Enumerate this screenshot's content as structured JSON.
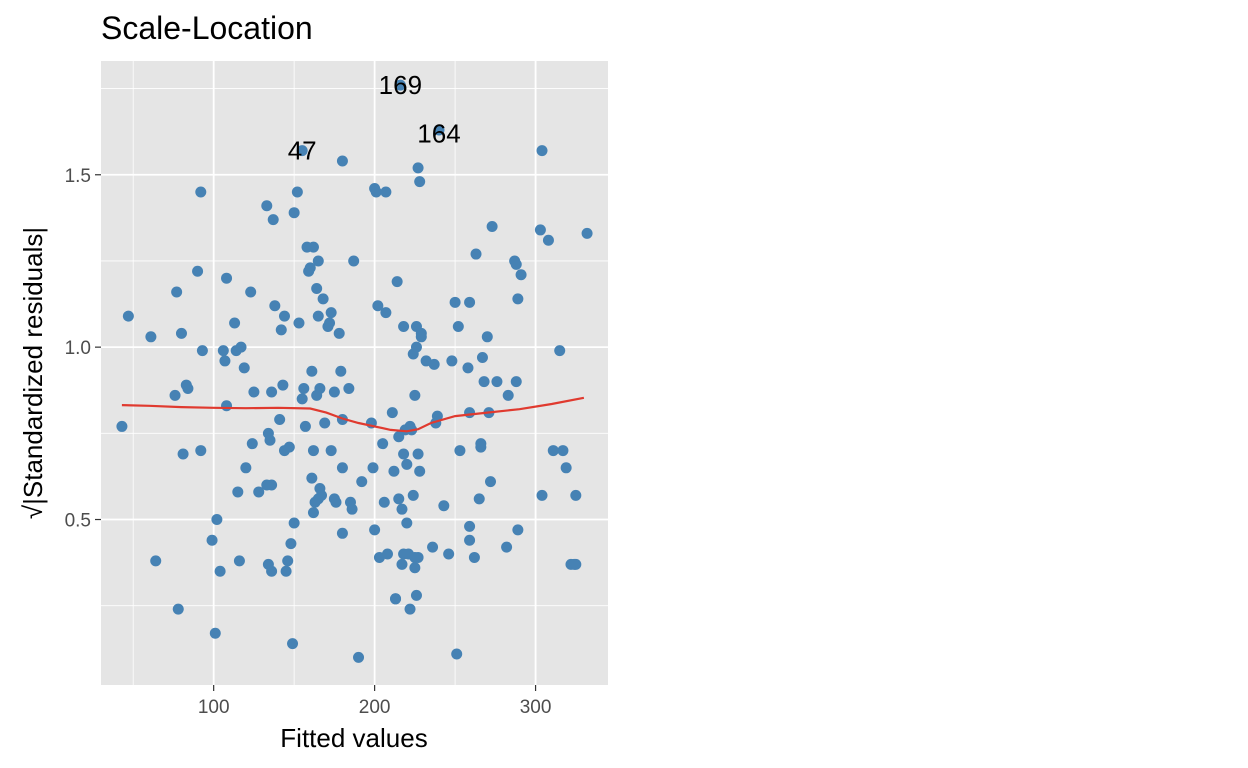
{
  "colors": {
    "panel": "#e5e5e5",
    "grid": "#ffffff",
    "point": "#4682b4",
    "smooth": "#e03a2f",
    "tick_text": "#4d4d4d"
  },
  "chart_data": {
    "type": "scatter",
    "title": "Scale-Location",
    "xlabel": "Fitted values",
    "ylabel": "√|Standardized residuals|",
    "xlim": [
      30,
      345
    ],
    "ylim": [
      0.02,
      1.83
    ],
    "x_ticks": [
      100,
      200,
      300
    ],
    "x_tick_labels": [
      "100",
      "200",
      "300"
    ],
    "y_ticks": [
      0.5,
      1.0,
      1.5
    ],
    "y_tick_labels": [
      "0.5",
      "1.0",
      "1.5"
    ],
    "grid": true,
    "legend": "none",
    "points": [
      [
        43,
        0.77
      ],
      [
        47,
        1.09
      ],
      [
        61,
        1.03
      ],
      [
        64,
        0.38
      ],
      [
        76,
        0.86
      ],
      [
        77,
        1.16
      ],
      [
        78,
        0.24
      ],
      [
        80,
        1.04
      ],
      [
        81,
        0.69
      ],
      [
        83,
        0.89
      ],
      [
        84,
        0.88
      ],
      [
        90,
        1.22
      ],
      [
        92,
        1.45
      ],
      [
        92,
        0.7
      ],
      [
        93,
        0.99
      ],
      [
        99,
        0.44
      ],
      [
        101,
        0.17
      ],
      [
        102,
        0.5
      ],
      [
        104,
        0.35
      ],
      [
        106,
        0.99
      ],
      [
        107,
        0.96
      ],
      [
        108,
        0.83
      ],
      [
        108,
        1.2
      ],
      [
        113,
        1.07
      ],
      [
        114,
        0.99
      ],
      [
        115,
        0.58
      ],
      [
        116,
        0.38
      ],
      [
        117,
        1.0
      ],
      [
        119,
        0.94
      ],
      [
        120,
        0.65
      ],
      [
        123,
        1.16
      ],
      [
        124,
        0.72
      ],
      [
        125,
        0.87
      ],
      [
        128,
        0.58
      ],
      [
        133,
        1.41
      ],
      [
        133,
        0.6
      ],
      [
        134,
        0.75
      ],
      [
        134,
        0.37
      ],
      [
        135,
        0.73
      ],
      [
        136,
        0.87
      ],
      [
        136,
        0.6
      ],
      [
        136,
        0.35
      ],
      [
        137,
        1.37
      ],
      [
        138,
        1.12
      ],
      [
        141,
        0.79
      ],
      [
        142,
        1.05
      ],
      [
        143,
        0.89
      ],
      [
        144,
        1.09
      ],
      [
        144,
        0.7
      ],
      [
        145,
        0.35
      ],
      [
        146,
        0.38
      ],
      [
        147,
        0.71
      ],
      [
        148,
        0.43
      ],
      [
        149,
        0.14
      ],
      [
        150,
        1.39
      ],
      [
        150,
        0.49
      ],
      [
        152,
        1.45
      ],
      [
        153,
        1.07
      ],
      [
        155,
        1.57
      ],
      [
        155,
        0.85
      ],
      [
        156,
        0.88
      ],
      [
        157,
        0.77
      ],
      [
        158,
        1.29
      ],
      [
        159,
        1.22
      ],
      [
        160,
        1.23
      ],
      [
        161,
        0.93
      ],
      [
        161,
        0.62
      ],
      [
        162,
        1.29
      ],
      [
        162,
        0.7
      ],
      [
        162,
        0.52
      ],
      [
        163,
        0.55
      ],
      [
        164,
        1.17
      ],
      [
        164,
        0.86
      ],
      [
        165,
        1.25
      ],
      [
        165,
        1.09
      ],
      [
        165,
        0.56
      ],
      [
        166,
        0.88
      ],
      [
        166,
        0.59
      ],
      [
        167,
        0.57
      ],
      [
        168,
        1.14
      ],
      [
        169,
        0.78
      ],
      [
        171,
        1.06
      ],
      [
        172,
        1.07
      ],
      [
        173,
        1.1
      ],
      [
        173,
        0.7
      ],
      [
        175,
        0.87
      ],
      [
        175,
        0.56
      ],
      [
        176,
        0.55
      ],
      [
        178,
        1.04
      ],
      [
        179,
        0.93
      ],
      [
        180,
        1.54
      ],
      [
        180,
        0.79
      ],
      [
        180,
        0.65
      ],
      [
        180,
        0.46
      ],
      [
        184,
        0.88
      ],
      [
        185,
        0.55
      ],
      [
        186,
        0.53
      ],
      [
        187,
        1.25
      ],
      [
        190,
        0.1
      ],
      [
        192,
        0.61
      ],
      [
        198,
        0.78
      ],
      [
        199,
        0.65
      ],
      [
        200,
        1.46
      ],
      [
        200,
        0.47
      ],
      [
        201,
        1.45
      ],
      [
        202,
        1.12
      ],
      [
        203,
        0.39
      ],
      [
        205,
        0.72
      ],
      [
        206,
        0.55
      ],
      [
        207,
        1.45
      ],
      [
        207,
        1.1
      ],
      [
        208,
        0.4
      ],
      [
        211,
        0.81
      ],
      [
        212,
        0.64
      ],
      [
        213,
        0.27
      ],
      [
        213,
        0.27
      ],
      [
        214,
        1.19
      ],
      [
        215,
        0.56
      ],
      [
        215,
        0.74
      ],
      [
        216,
        1.76
      ],
      [
        217,
        0.37
      ],
      [
        217,
        0.53
      ],
      [
        218,
        1.06
      ],
      [
        218,
        0.69
      ],
      [
        218,
        0.4
      ],
      [
        219,
        0.76
      ],
      [
        220,
        0.66
      ],
      [
        220,
        0.49
      ],
      [
        221,
        0.4
      ],
      [
        222,
        0.77
      ],
      [
        222,
        0.24
      ],
      [
        223,
        0.76
      ],
      [
        224,
        0.57
      ],
      [
        224,
        0.98
      ],
      [
        225,
        0.39
      ],
      [
        225,
        0.36
      ],
      [
        225,
        0.86
      ],
      [
        226,
        0.28
      ],
      [
        226,
        1.0
      ],
      [
        226,
        1.06
      ],
      [
        227,
        0.39
      ],
      [
        227,
        0.69
      ],
      [
        227,
        1.52
      ],
      [
        228,
        0.64
      ],
      [
        228,
        1.48
      ],
      [
        229,
        1.04
      ],
      [
        229,
        1.03
      ],
      [
        232,
        0.96
      ],
      [
        236,
        0.42
      ],
      [
        237,
        0.95
      ],
      [
        238,
        0.78
      ],
      [
        239,
        0.8
      ],
      [
        240,
        1.63
      ],
      [
        243,
        0.54
      ],
      [
        246,
        0.4
      ],
      [
        248,
        0.96
      ],
      [
        250,
        1.13
      ],
      [
        251,
        0.11
      ],
      [
        252,
        1.06
      ],
      [
        253,
        0.7
      ],
      [
        258,
        0.94
      ],
      [
        259,
        1.13
      ],
      [
        259,
        0.81
      ],
      [
        259,
        0.48
      ],
      [
        259,
        0.44
      ],
      [
        262,
        0.39
      ],
      [
        263,
        1.27
      ],
      [
        265,
        0.56
      ],
      [
        266,
        0.71
      ],
      [
        266,
        0.72
      ],
      [
        267,
        0.97
      ],
      [
        268,
        0.9
      ],
      [
        270,
        1.03
      ],
      [
        271,
        0.81
      ],
      [
        272,
        0.61
      ],
      [
        273,
        1.35
      ],
      [
        276,
        0.9
      ],
      [
        282,
        0.42
      ],
      [
        283,
        0.86
      ],
      [
        287,
        1.25
      ],
      [
        288,
        0.9
      ],
      [
        288,
        1.24
      ],
      [
        289,
        0.47
      ],
      [
        289,
        1.14
      ],
      [
        291,
        1.21
      ],
      [
        303,
        1.34
      ],
      [
        304,
        1.57
      ],
      [
        304,
        0.57
      ],
      [
        308,
        1.31
      ],
      [
        311,
        0.7
      ],
      [
        315,
        0.99
      ],
      [
        317,
        0.7
      ],
      [
        319,
        0.65
      ],
      [
        322,
        0.37
      ],
      [
        324,
        0.37
      ],
      [
        325,
        0.57
      ],
      [
        325,
        0.37
      ],
      [
        332,
        1.33
      ]
    ],
    "smooth": {
      "x": [
        43,
        60,
        80,
        100,
        120,
        140,
        160,
        170,
        180,
        190,
        200,
        210,
        220,
        227,
        235,
        250,
        270,
        290,
        310,
        330
      ],
      "y": [
        0.832,
        0.83,
        0.826,
        0.824,
        0.823,
        0.824,
        0.822,
        0.81,
        0.793,
        0.78,
        0.77,
        0.76,
        0.756,
        0.762,
        0.78,
        0.8,
        0.81,
        0.82,
        0.835,
        0.853
      ]
    },
    "annotations": [
      {
        "text": "169",
        "x": 216,
        "y": 1.76
      },
      {
        "text": "164",
        "x": 240,
        "y": 1.62
      },
      {
        "text": "47",
        "x": 155,
        "y": 1.57
      }
    ]
  }
}
